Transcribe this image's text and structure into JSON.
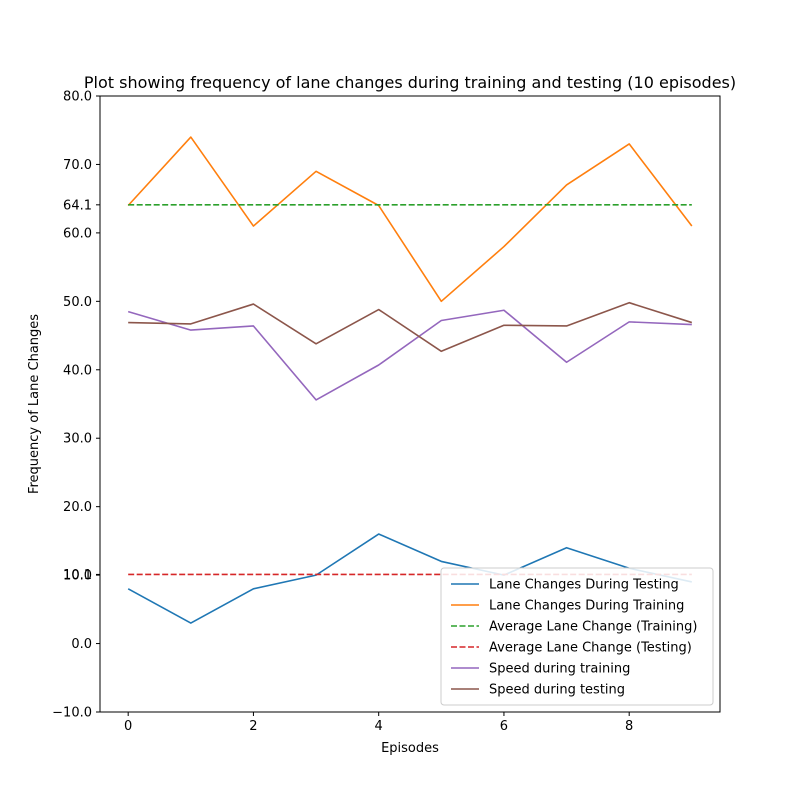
{
  "chart_data": {
    "type": "line",
    "title": "Plot showing frequency of lane changes during training and testing (10 episodes)",
    "xlabel": "Episodes",
    "ylabel": "Frequency of Lane Changes",
    "xlim": [
      -0.45,
      9.45
    ],
    "ylim": [
      -10,
      80
    ],
    "x": [
      0,
      1,
      2,
      3,
      4,
      5,
      6,
      7,
      8,
      9
    ],
    "x_ticks": [
      0,
      2,
      4,
      6,
      8
    ],
    "x_tick_labels": [
      "0",
      "2",
      "4",
      "6",
      "8"
    ],
    "y_ticks": [
      -10,
      0,
      10,
      10.1,
      20,
      30,
      40,
      50,
      60,
      64.1,
      70,
      80
    ],
    "y_tick_labels": [
      "−10.0",
      "0.0",
      "10.0",
      "10.1",
      "20.0",
      "30.0",
      "40.0",
      "50.0",
      "60.0",
      "64.1",
      "70.0",
      "80.0"
    ],
    "grid": false,
    "legend_position": "lower-right",
    "series": [
      {
        "name": "Lane Changes During Testing",
        "color": "#1f77b4",
        "dash": "solid",
        "values": [
          8,
          3,
          8,
          10,
          16,
          12,
          10,
          14,
          11,
          9
        ]
      },
      {
        "name": "Lane Changes During Training",
        "color": "#ff7f0e",
        "dash": "solid",
        "values": [
          64,
          74,
          61,
          69,
          64,
          50,
          58,
          67,
          73,
          61
        ]
      },
      {
        "name": "Average Lane Change (Training)",
        "color": "#2ca02c",
        "dash": "dashed",
        "values": [
          64.1,
          64.1,
          64.1,
          64.1,
          64.1,
          64.1,
          64.1,
          64.1,
          64.1,
          64.1
        ]
      },
      {
        "name": "Average Lane Change (Testing)",
        "color": "#d62728",
        "dash": "dashed",
        "values": [
          10.1,
          10.1,
          10.1,
          10.1,
          10.1,
          10.1,
          10.1,
          10.1,
          10.1,
          10.1
        ]
      },
      {
        "name": "Speed during training",
        "color": "#9467bd",
        "dash": "solid",
        "values": [
          48.5,
          45.8,
          46.4,
          35.6,
          40.7,
          47.2,
          48.7,
          41.1,
          47.0,
          46.6
        ]
      },
      {
        "name": "Speed during testing",
        "color": "#8c564b",
        "dash": "solid",
        "values": [
          46.9,
          46.7,
          49.6,
          43.8,
          48.8,
          42.7,
          46.5,
          46.4,
          49.8,
          46.9
        ]
      }
    ]
  }
}
